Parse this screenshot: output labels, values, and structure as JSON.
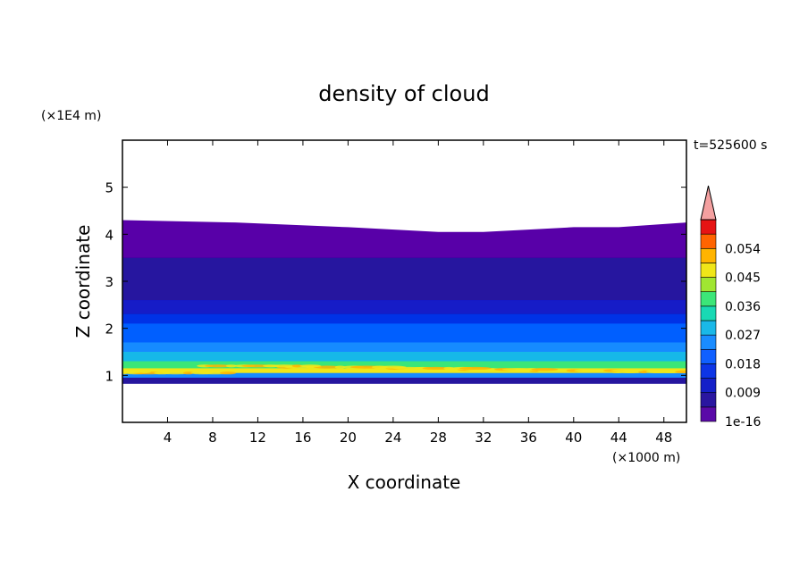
{
  "chart_data": {
    "type": "heatmap",
    "title": "density of cloud",
    "xlabel": "X coordinate",
    "ylabel": "Z coordinate",
    "x_unit": "(×1000 m)",
    "y_unit": "(×1E4 m)",
    "time_label": "t=525600 s",
    "xlim": [
      0,
      50
    ],
    "ylim": [
      0,
      6
    ],
    "x_ticks": [
      4,
      8,
      12,
      16,
      20,
      24,
      28,
      32,
      36,
      40,
      44,
      48
    ],
    "x_tick_labels": [
      "4",
      "8",
      "12",
      "16",
      "20",
      "24",
      "28",
      "32",
      "36",
      "40",
      "44",
      "48"
    ],
    "y_ticks": [
      1,
      2,
      3,
      4,
      5
    ],
    "y_tick_labels": [
      "1",
      "2",
      "3",
      "4",
      "5"
    ],
    "colorbar": {
      "levels": [
        1e-16,
        0.0045,
        0.009,
        0.0135,
        0.018,
        0.0225,
        0.027,
        0.0315,
        0.036,
        0.0405,
        0.045,
        0.0495,
        0.054,
        0.0585
      ],
      "tick_labels": [
        "1e-16",
        "0.009",
        "0.018",
        "0.027",
        "0.036",
        "0.045",
        "0.054"
      ],
      "colors": [
        "#5a0aa8",
        "#2a16a0",
        "#1420c8",
        "#0d35e6",
        "#1060ff",
        "#1a8cff",
        "#1ab8e8",
        "#19d9b4",
        "#3ce678",
        "#a0e632",
        "#f0e619",
        "#ffb400",
        "#ff6400",
        "#e61414"
      ],
      "extend_color": "#f4a0a0"
    },
    "profile": {
      "z": [
        0.8,
        0.95,
        1.05,
        1.15,
        1.3,
        1.5,
        1.7,
        1.9,
        2.1,
        2.3,
        2.6,
        3.0,
        3.5,
        4.0,
        4.3
      ],
      "density": [
        0.006,
        0.025,
        0.045,
        0.04,
        0.03,
        0.026,
        0.022,
        0.019,
        0.015,
        0.011,
        0.008,
        0.005,
        0.002,
        0.001,
        0.0005
      ]
    },
    "cloud_top": {
      "x": [
        0,
        10,
        20,
        28,
        32,
        36,
        40,
        44,
        50
      ],
      "z": [
        4.3,
        4.25,
        4.15,
        4.05,
        4.05,
        4.1,
        4.15,
        4.15,
        4.25
      ]
    },
    "cloud_base_z": 0.82,
    "grid": false
  }
}
